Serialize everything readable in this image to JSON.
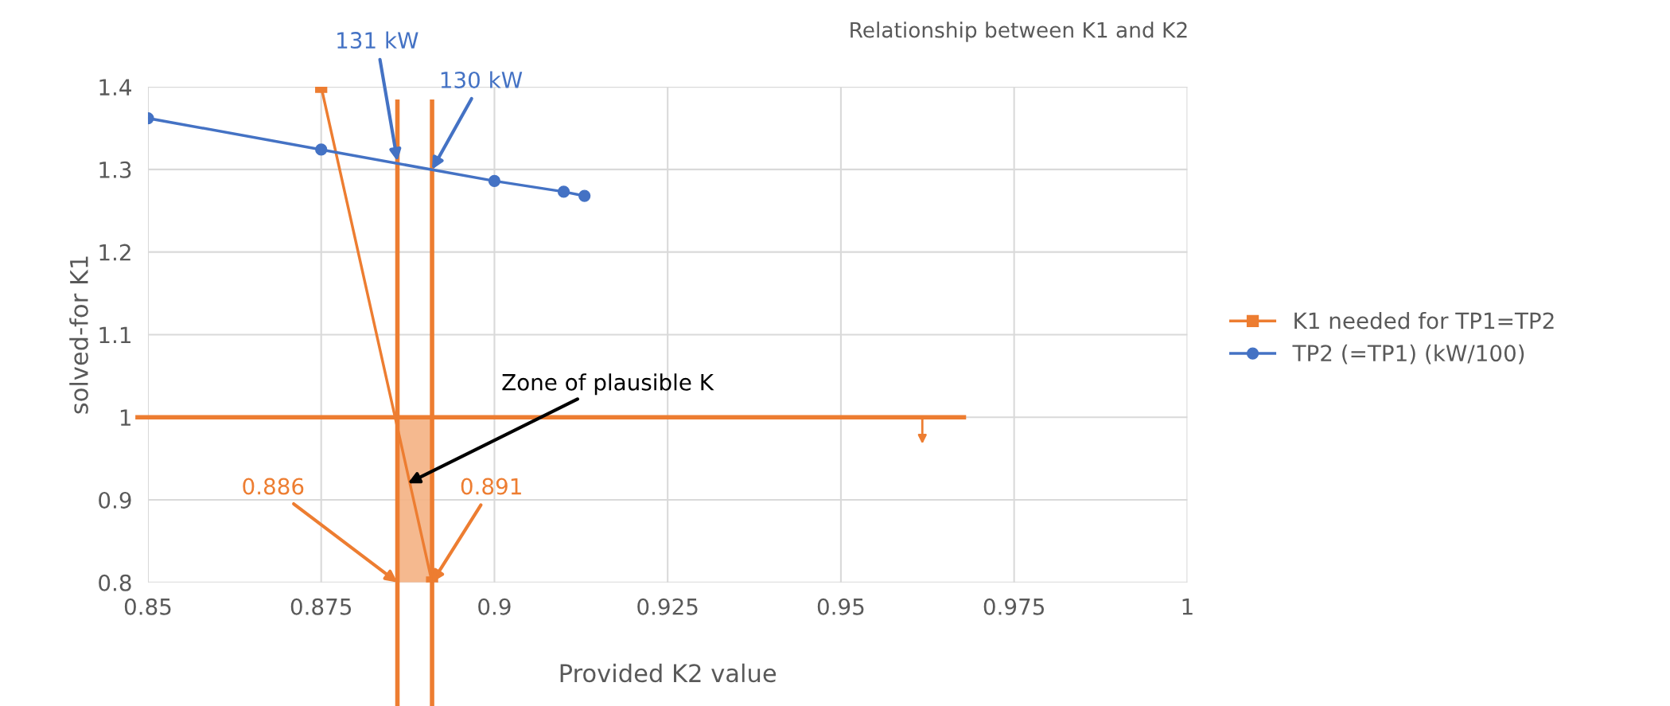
{
  "chart_data": {
    "type": "line",
    "title": "Relationship between K1 and K2",
    "xlabel": "Provided K2 value",
    "ylabel": "solved-for K1",
    "series": [
      {
        "name": "K1 needed for TP1=TP2",
        "color": "#ed7d31",
        "marker": "square",
        "x": [
          0.875,
          0.891
        ],
        "values": [
          1.4,
          0.8
        ]
      },
      {
        "name": "TP2 (=TP1) (kW/100)",
        "color": "#4472c4",
        "marker": "circle",
        "x": [
          0.85,
          0.875,
          0.9,
          0.91,
          0.913
        ],
        "values": [
          1.362,
          1.324,
          1.286,
          1.273,
          1.268
        ]
      }
    ],
    "xlim": [
      0.85,
      1.0
    ],
    "xticks": [
      0.85,
      0.875,
      0.9,
      0.925,
      0.95,
      0.975,
      {
        "value": 1.0,
        "label": "1"
      }
    ],
    "ylim": [
      0.8,
      1.4
    ],
    "yticks": [
      0.8,
      0.9,
      {
        "value": 1.0,
        "label": "1"
      },
      1.1,
      1.2,
      1.3,
      1.4
    ],
    "ref_lines": [
      {
        "axis": "x",
        "value": 0.886,
        "color": "#ed7d31"
      },
      {
        "axis": "x",
        "value": 0.891,
        "color": "#ed7d31"
      },
      {
        "axis": "y",
        "value": 1.0,
        "color": "#ed7d31"
      }
    ],
    "bands": [
      {
        "axis": "x",
        "from": 0.886,
        "to": 0.891,
        "color": "#f4b183"
      }
    ],
    "annotations": [
      {
        "text": "131 kW",
        "x": 0.886,
        "y": 1.31
      },
      {
        "text": "130 kW",
        "x": 0.891,
        "y": 1.3
      },
      {
        "text": "Zone of plausible K",
        "x": 0.8875,
        "y": 0.92
      },
      {
        "text": "0.886",
        "x": 0.886,
        "y": 0.8
      },
      {
        "text": "0.891",
        "x": 0.891,
        "y": 0.8
      }
    ],
    "grid": true,
    "legend": "right"
  }
}
